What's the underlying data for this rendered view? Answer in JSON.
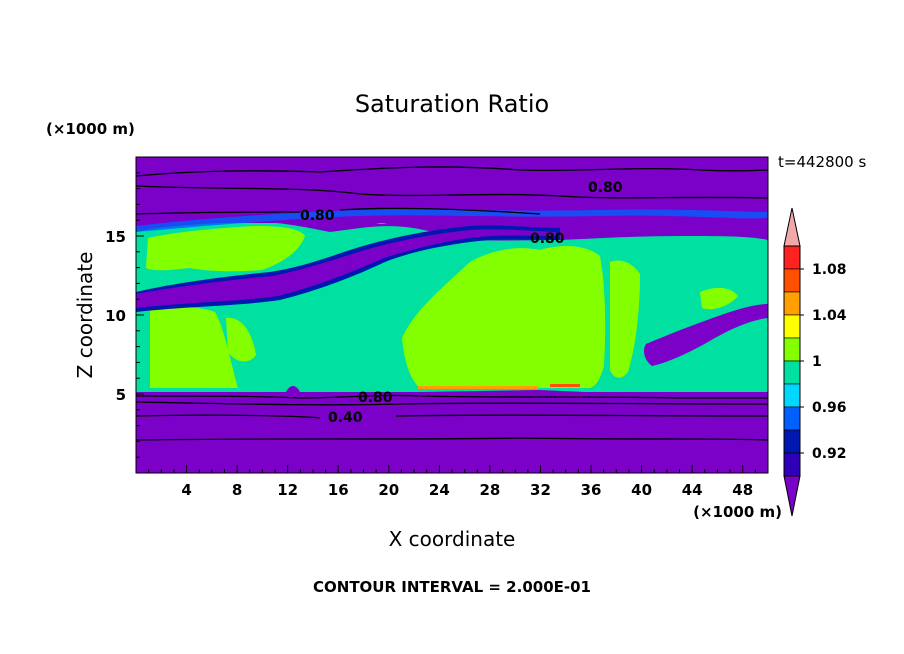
{
  "chart_data": {
    "type": "heatmap",
    "title": "Saturation Ratio",
    "xlabel": "X coordinate",
    "ylabel": "Z coordinate",
    "x_unit": "(×1000 m)",
    "y_unit": "(×1000 m)",
    "time_label": "t=442800 s",
    "footer": "CONTOUR INTERVAL = 2.000E-01",
    "xlim": [
      0,
      50
    ],
    "ylim": [
      0,
      20
    ],
    "x_ticks": [
      "4",
      "8",
      "12",
      "16",
      "20",
      "24",
      "28",
      "32",
      "36",
      "40",
      "44",
      "48"
    ],
    "y_ticks": [
      "5",
      "10",
      "15"
    ],
    "colorbar": {
      "levels": [
        "0.92",
        "0.96",
        "1",
        "1.04",
        "1.08"
      ],
      "colors": [
        "#7b00c8",
        "#2f00b8",
        "#0018b0",
        "#0060ff",
        "#00d8ff",
        "#00e0a0",
        "#84ff00",
        "#ffff00",
        "#ffa000",
        "#ff5000",
        "#ff2020",
        "#f0a8a8"
      ]
    },
    "contour_labels": [
      "0.80",
      "0.80",
      "0.80",
      "0.80",
      "0.40"
    ]
  }
}
